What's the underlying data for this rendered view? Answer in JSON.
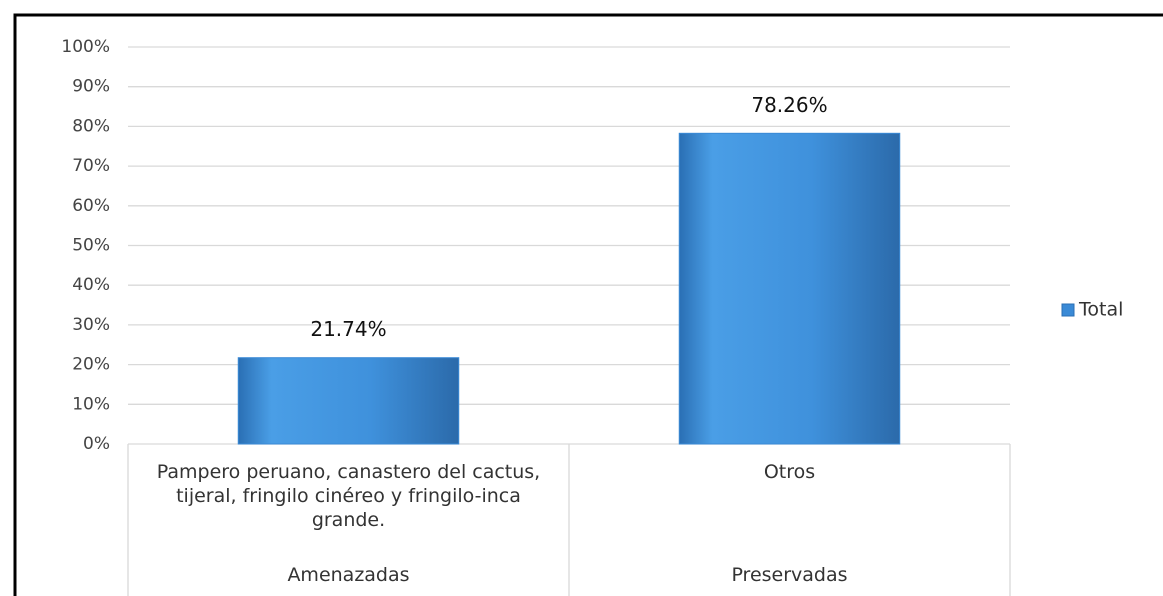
{
  "chart_data": {
    "type": "bar",
    "categories": [
      "Pampero peruano, canastero del cactus, tijeral, fringilo cinéreo y fringilo-inca grande.",
      "Otros"
    ],
    "groups": [
      "Amenazadas",
      "Preservadas"
    ],
    "series": [
      {
        "name": "Total",
        "color": "#3a8ad6",
        "values": [
          21.74,
          78.26
        ],
        "value_labels": [
          "21.74%",
          "78.26%"
        ]
      }
    ],
    "ylim": [
      0,
      100
    ],
    "yticks": [
      {
        "value": 0,
        "label": "0%"
      },
      {
        "value": 10,
        "label": "10%"
      },
      {
        "value": 20,
        "label": "20%"
      },
      {
        "value": 30,
        "label": "30%"
      },
      {
        "value": 40,
        "label": "40%"
      },
      {
        "value": 50,
        "label": "50%"
      },
      {
        "value": 60,
        "label": "60%"
      },
      {
        "value": 70,
        "label": "70%"
      },
      {
        "value": 80,
        "label": "80%"
      },
      {
        "value": 90,
        "label": "90%"
      },
      {
        "value": 100,
        "label": "100%"
      }
    ],
    "grid": true,
    "legend": "right"
  }
}
